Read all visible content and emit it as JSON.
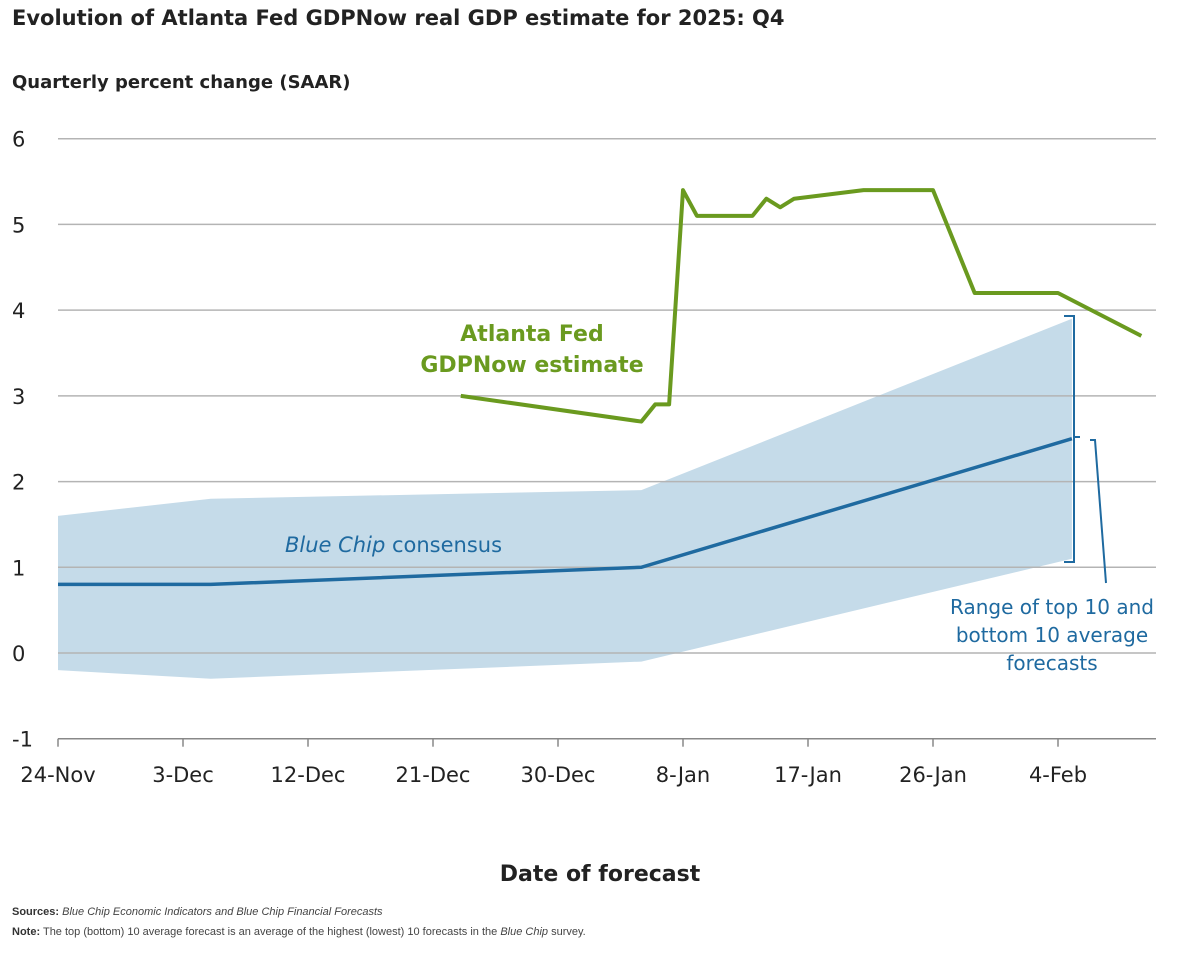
{
  "title": "Evolution of Atlanta Fed GDPNow real GDP estimate for 2025: Q4",
  "colors": {
    "gdpnow": "#6a9a1f",
    "consensus": "#1f6aa0",
    "band": "#c5dbe9",
    "grid": "#b4b4b4"
  },
  "chart_data": {
    "type": "line",
    "title": "Evolution of Atlanta Fed GDPNow real GDP estimate for 2025: Q4",
    "ylabel": "Quarterly percent change (SAAR)",
    "xlabel": "Date of forecast",
    "ylim": [
      -1,
      6
    ],
    "yticks": [
      6,
      5,
      4,
      3,
      2,
      1,
      0,
      -1
    ],
    "xticks": [
      {
        "date": "2025-11-24",
        "label": "24-Nov"
      },
      {
        "date": "2025-12-03",
        "label": "3-Dec"
      },
      {
        "date": "2025-12-12",
        "label": "12-Dec"
      },
      {
        "date": "2025-12-21",
        "label": "21-Dec"
      },
      {
        "date": "2025-12-30",
        "label": "30-Dec"
      },
      {
        "date": "2026-01-08",
        "label": "8-Jan"
      },
      {
        "date": "2026-01-17",
        "label": "17-Jan"
      },
      {
        "date": "2026-01-26",
        "label": "26-Jan"
      },
      {
        "date": "2026-02-04",
        "label": "4-Feb"
      }
    ],
    "grid": true,
    "series": [
      {
        "name": "Atlanta Fed GDPNow estimate",
        "label_lines": [
          "Atlanta Fed",
          "GDPNow estimate"
        ],
        "points": [
          [
            "2025-12-23",
            3.0
          ],
          [
            "2026-01-05",
            2.7
          ],
          [
            "2026-01-06",
            2.9
          ],
          [
            "2026-01-07",
            2.9
          ],
          [
            "2026-01-08",
            5.4
          ],
          [
            "2026-01-09",
            5.1
          ],
          [
            "2026-01-13",
            5.1
          ],
          [
            "2026-01-14",
            5.3
          ],
          [
            "2026-01-15",
            5.2
          ],
          [
            "2026-01-16",
            5.3
          ],
          [
            "2026-01-21",
            5.4
          ],
          [
            "2026-01-26",
            5.4
          ],
          [
            "2026-01-29",
            4.2
          ],
          [
            "2026-02-04",
            4.2
          ],
          [
            "2026-02-10",
            3.7
          ]
        ]
      },
      {
        "name": "Blue Chip consensus",
        "label_italic": "Blue Chip",
        "label_rest": " consensus",
        "points": [
          [
            "2025-11-24",
            0.8
          ],
          [
            "2025-12-05",
            0.8
          ],
          [
            "2026-01-05",
            1.0
          ],
          [
            "2026-02-05",
            2.5
          ]
        ]
      }
    ],
    "band": {
      "name": "Range of top 10 and bottom 10 average forecasts",
      "label_lines": [
        "Range of top 10 and",
        "bottom 10 average",
        "forecasts"
      ],
      "upper": [
        [
          "2025-11-24",
          1.6
        ],
        [
          "2025-12-05",
          1.8
        ],
        [
          "2026-01-05",
          1.9
        ],
        [
          "2026-02-05",
          3.9
        ]
      ],
      "lower": [
        [
          "2025-11-24",
          -0.2
        ],
        [
          "2025-12-05",
          -0.3
        ],
        [
          "2026-01-05",
          -0.1
        ],
        [
          "2026-02-05",
          1.1
        ]
      ]
    }
  },
  "footer": {
    "sources_label": "Sources:",
    "sources_text": "Blue Chip Economic Indicators and Blue Chip Financial Forecasts",
    "note_label": "Note:",
    "note_text1": "The top (bottom) 10 average forecast is an average of the highest (lowest) 10 forecasts in the ",
    "note_italic": "Blue Chip",
    "note_text2": " survey."
  }
}
